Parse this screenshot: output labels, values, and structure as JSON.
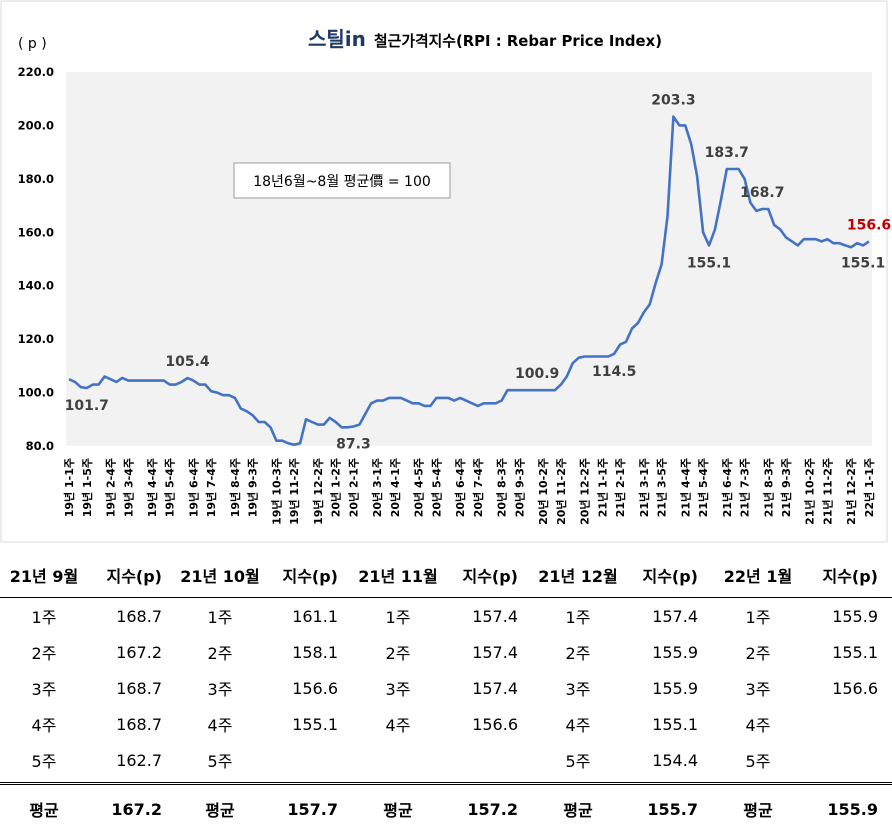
{
  "chart_data": {
    "type": "line",
    "logo": "스틸in",
    "title": "철근가격지수(RPI : Rebar Price Index)",
    "ylabel": "( p )",
    "ylim": [
      80,
      220
    ],
    "yticks": [
      "80.0",
      "100.0",
      "120.0",
      "140.0",
      "160.0",
      "180.0",
      "200.0",
      "220.0"
    ],
    "note": "18년6월~8월 평균價 = 100",
    "grid": false,
    "line_color": "#4472C4",
    "xticks": [
      "19년 1-1주",
      "19년 1-5주",
      "19년 2-4주",
      "19년 3-4주",
      "19년 4-4주",
      "19년 5-4주",
      "19년 6-4주",
      "19년 7-4주",
      "19년 8-4주",
      "19년 9-3주",
      "19년 10-3주",
      "19년 11-2주",
      "19년 12-2주",
      "20년 1-2주",
      "20년 2-1주",
      "20년 3-1주",
      "20년 4-1주",
      "20년 4-5주",
      "20년 5-4주",
      "20년 6-4주",
      "20년 7-4주",
      "20년 8-3주",
      "20년 9-3주",
      "20년 10-2주",
      "20년 11-2주",
      "20년 12-2주",
      "21년 1-1주",
      "21년 2-1주",
      "21년 3-1주",
      "21년 3-5주",
      "21년 4-4주",
      "21년 5-4주",
      "21년 6-4주",
      "21년 7-3주",
      "21년 8-3주",
      "21년 9-3주",
      "21년 10-2주",
      "21년 11-2주",
      "21년 12-2주",
      "22년 1-1주"
    ],
    "values": [
      105,
      104,
      102,
      101.7,
      103,
      103,
      106,
      105,
      104,
      105.5,
      104.5,
      104.5,
      104.5,
      104.5,
      104.5,
      104.5,
      104.5,
      103,
      103,
      104,
      105.4,
      104.5,
      103,
      103,
      100.5,
      100,
      99,
      99,
      98,
      94,
      93,
      91.5,
      89,
      89,
      87,
      82,
      82,
      81,
      80.5,
      81,
      90,
      89,
      88,
      88,
      90.5,
      89,
      87,
      87,
      87.3,
      88,
      92,
      96,
      97,
      97,
      98,
      98,
      98,
      97,
      96,
      96,
      95,
      95,
      98,
      98,
      98,
      97,
      98,
      97,
      96,
      95,
      96,
      96,
      96,
      97,
      100.9,
      100.9,
      100.9,
      100.9,
      100.9,
      100.9,
      100.9,
      100.9,
      100.9,
      103,
      106,
      111,
      113,
      113.5,
      113.5,
      113.5,
      113.5,
      113.5,
      114.5,
      118,
      119,
      124,
      126,
      130,
      133,
      141,
      148,
      166,
      203.3,
      200,
      200,
      193,
      181,
      160,
      155.1,
      161,
      172,
      183.7,
      183.7,
      183.7,
      180,
      171,
      168,
      168.7,
      168.7,
      162.7,
      161.1,
      158.1,
      156.6,
      155.1,
      157.4,
      157.4,
      157.4,
      156.6,
      157.4,
      155.9,
      155.9,
      155.1,
      154.4,
      155.9,
      155.1,
      156.6
    ],
    "annotations": [
      {
        "text": "101.7",
        "x": 3,
        "y": 101.7,
        "pos": "below",
        "color": "#404040"
      },
      {
        "text": "105.4",
        "x": 20,
        "y": 105.4,
        "pos": "above",
        "color": "#404040"
      },
      {
        "text": "87.3",
        "x": 48,
        "y": 87.3,
        "pos": "below",
        "color": "#404040"
      },
      {
        "text": "100.9",
        "x": 79,
        "y": 100.9,
        "pos": "above",
        "color": "#404040"
      },
      {
        "text": "114.5",
        "x": 92,
        "y": 114.5,
        "pos": "below",
        "color": "#404040"
      },
      {
        "text": "203.3",
        "x": 102,
        "y": 203.3,
        "pos": "above",
        "color": "#404040"
      },
      {
        "text": "155.1",
        "x": 108,
        "y": 155.1,
        "pos": "below",
        "color": "#404040"
      },
      {
        "text": "183.7",
        "x": 111,
        "y": 183.7,
        "pos": "above",
        "color": "#404040"
      },
      {
        "text": "168.7",
        "x": 117,
        "y": 168.7,
        "pos": "above",
        "color": "#404040"
      },
      {
        "text": "156.6",
        "x": 135,
        "y": 156.6,
        "pos": "above",
        "color": "#C00000"
      },
      {
        "text": "155.1",
        "x": 134,
        "y": 155.1,
        "pos": "below",
        "color": "#404040"
      }
    ]
  },
  "table": {
    "headers": [
      "21년 9월",
      "지수(p)",
      "21년 10월",
      "지수(p)",
      "21년 11월",
      "지수(p)",
      "21년 12월",
      "지수(p)",
      "22년 1월",
      "지수(p)"
    ],
    "rows": [
      [
        "1주",
        "168.7",
        "1주",
        "161.1",
        "1주",
        "157.4",
        "1주",
        "157.4",
        "1주",
        "155.9"
      ],
      [
        "2주",
        "167.2",
        "2주",
        "158.1",
        "2주",
        "157.4",
        "2주",
        "155.9",
        "2주",
        "155.1"
      ],
      [
        "3주",
        "168.7",
        "3주",
        "156.6",
        "3주",
        "157.4",
        "3주",
        "155.9",
        "3주",
        "156.6"
      ],
      [
        "4주",
        "168.7",
        "4주",
        "155.1",
        "4주",
        "156.6",
        "4주",
        "155.1",
        "4주",
        ""
      ],
      [
        "5주",
        "162.7",
        "5주",
        "",
        "",
        "",
        "5주",
        "154.4",
        "5주",
        ""
      ]
    ],
    "average": [
      "평균",
      "167.2",
      "평균",
      "157.7",
      "평균",
      "157.2",
      "평균",
      "155.7",
      "평균",
      "155.9"
    ]
  }
}
